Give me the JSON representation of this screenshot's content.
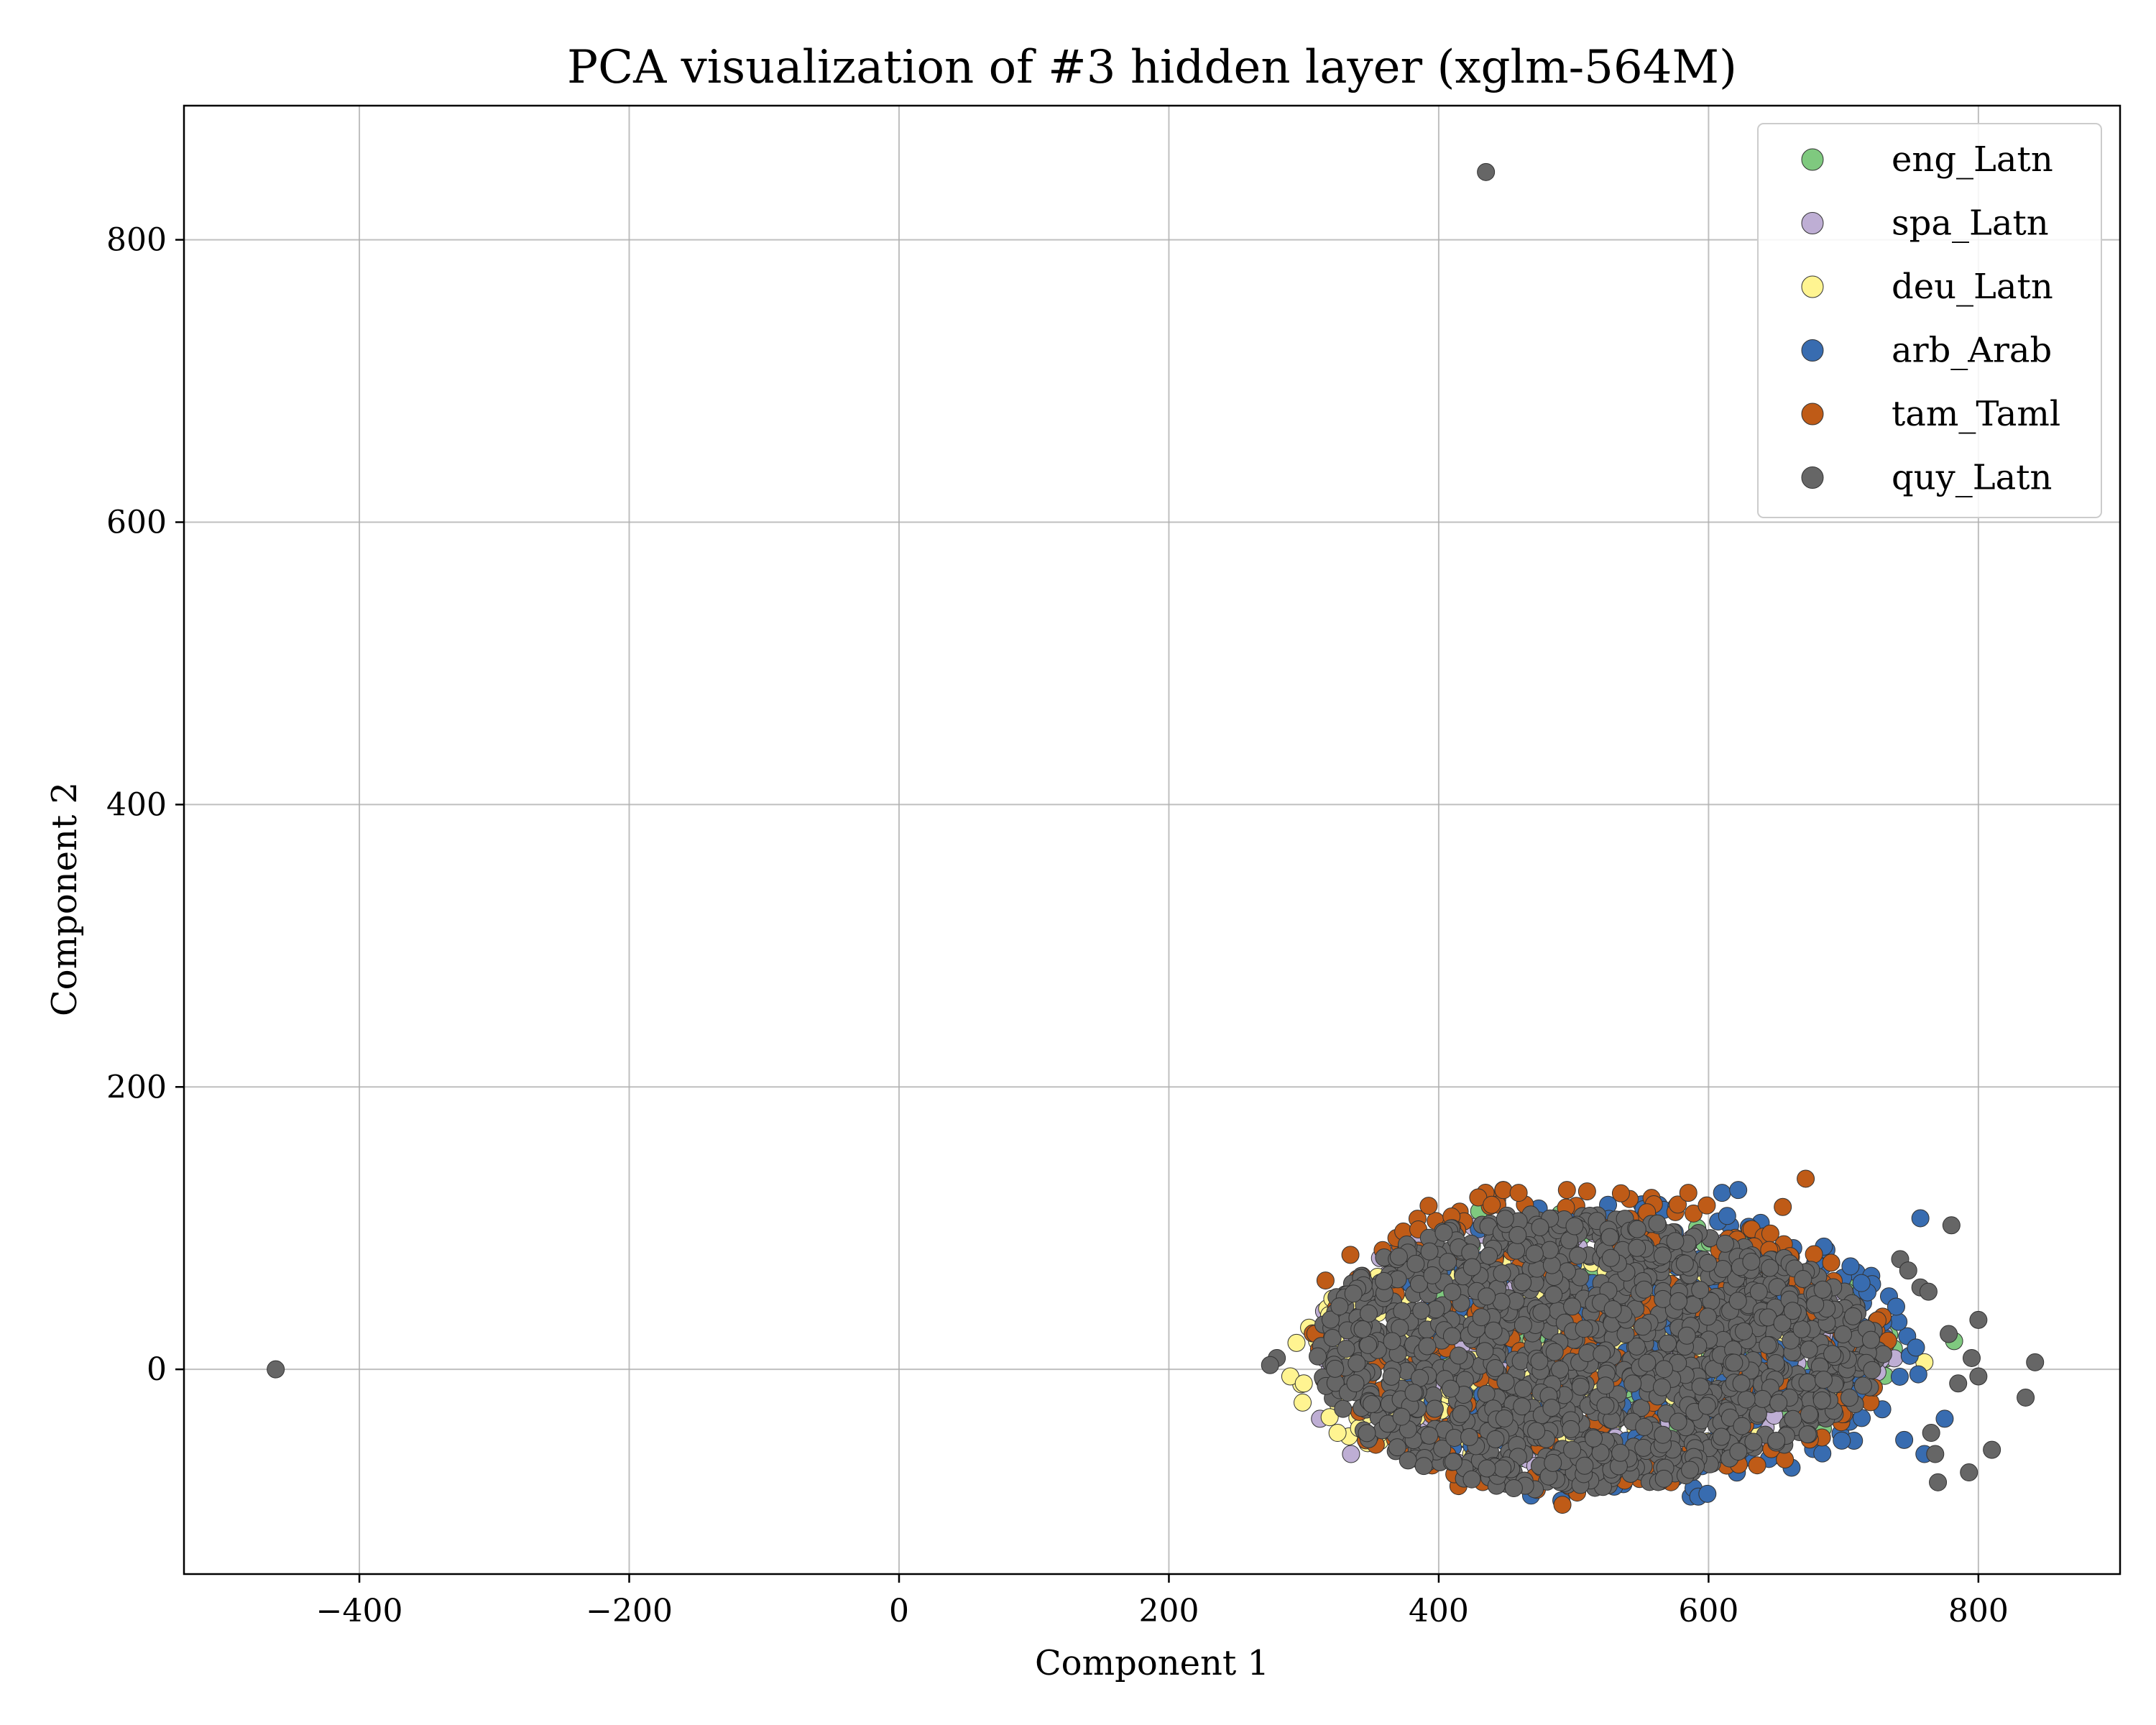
{
  "chart_data": {
    "type": "scatter",
    "title": "PCA visualization of #3 hidden layer (xglm-564M)",
    "xlabel": "Component 1",
    "ylabel": "Component 2",
    "xlim": [
      -530,
      905
    ],
    "ylim": [
      -145,
      895
    ],
    "xticks": [
      -400,
      -200,
      0,
      200,
      400,
      600,
      800
    ],
    "yticks": [
      0,
      200,
      400,
      600,
      800
    ],
    "xtick_labels": [
      "−400",
      "−200",
      "0",
      "200",
      "400",
      "600",
      "800"
    ],
    "ytick_labels": [
      "0",
      "200",
      "400",
      "600",
      "800"
    ],
    "grid": true,
    "legend_position": "top-right",
    "series": [
      {
        "name": "eng_Latn",
        "color": "#7fc97f",
        "cluster": {
          "x_range": [
            330,
            760
          ],
          "y_range": [
            -75,
            110
          ],
          "count": 260
        },
        "points": [
          [
            430,
            112
          ],
          [
            782,
            20
          ],
          [
            392,
            80
          ],
          [
            415,
            75
          ]
        ]
      },
      {
        "name": "spa_Latn",
        "color": "#beaed4",
        "cluster": {
          "x_range": [
            305,
            740
          ],
          "y_range": [
            -75,
            105
          ],
          "count": 280
        },
        "points": [
          [
            437,
            102
          ],
          [
            465,
            98
          ],
          [
            312,
            -35
          ],
          [
            335,
            -60
          ],
          [
            730,
            25
          ]
        ]
      },
      {
        "name": "deu_Latn",
        "color": "#fff491",
        "cluster": {
          "x_range": [
            285,
            720
          ],
          "y_range": [
            -70,
            80
          ],
          "count": 280
        },
        "points": [
          [
            760,
            5
          ],
          [
            290,
            -5
          ],
          [
            300,
            -10
          ],
          [
            325,
            -45
          ],
          [
            355,
            40
          ],
          [
            350,
            25
          ]
        ]
      },
      {
        "name": "arb_Arab",
        "color": "#386cb0",
        "cluster": {
          "x_range": [
            360,
            760
          ],
          "y_range": [
            -95,
            120
          ],
          "count": 320
        },
        "points": [
          [
            757,
            107
          ],
          [
            610,
            125
          ],
          [
            622,
            127
          ],
          [
            775,
            -35
          ],
          [
            745,
            -50
          ],
          [
            760,
            -60
          ]
        ]
      },
      {
        "name": "tam_Taml",
        "color": "#bf5b17",
        "cluster": {
          "x_range": [
            300,
            740
          ],
          "y_range": [
            -98,
            130
          ],
          "count": 360
        },
        "points": [
          [
            672,
            135
          ],
          [
            495,
            127
          ],
          [
            410,
            100
          ],
          [
            585,
            125
          ],
          [
            655,
            115
          ],
          [
            390,
            75
          ]
        ]
      },
      {
        "name": "quy_Latn",
        "color": "#666666",
        "cluster": {
          "x_range": [
            310,
            730
          ],
          "y_range": [
            -85,
            110
          ],
          "count": 1400
        },
        "points": [
          [
            435,
            848
          ],
          [
            -462,
            0
          ],
          [
            842,
            5
          ],
          [
            835,
            -20
          ],
          [
            810,
            -57
          ],
          [
            800,
            35
          ],
          [
            795,
            8
          ],
          [
            780,
            102
          ],
          [
            785,
            -10
          ],
          [
            770,
            -80
          ],
          [
            793,
            -73
          ],
          [
            765,
            -45
          ],
          [
            768,
            -60
          ],
          [
            800,
            -5
          ],
          [
            778,
            25
          ],
          [
            757,
            58
          ],
          [
            763,
            55
          ],
          [
            742,
            78
          ],
          [
            748,
            70
          ],
          [
            280,
            8
          ],
          [
            275,
            3
          ]
        ]
      }
    ]
  }
}
